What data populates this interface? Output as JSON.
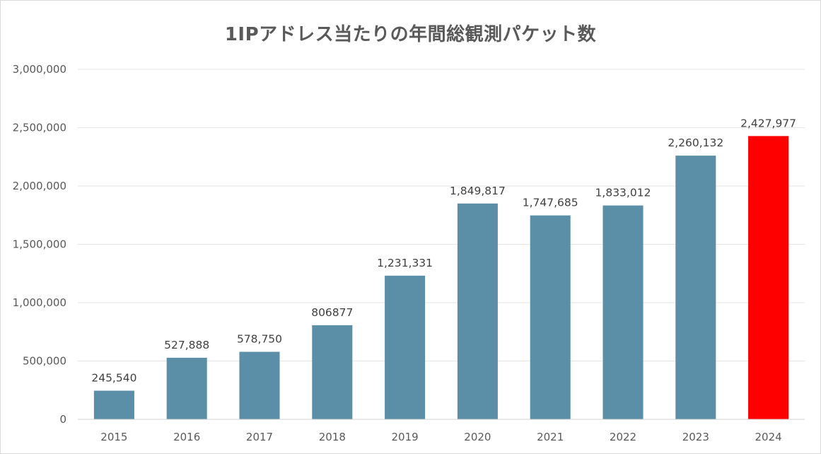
{
  "chart_data": {
    "type": "bar",
    "title": "1IPアドレス当たりの年間総観測パケット数",
    "xlabel": "",
    "ylabel": "",
    "categories": [
      "2015",
      "2016",
      "2017",
      "2018",
      "2019",
      "2020",
      "2021",
      "2022",
      "2023",
      "2024"
    ],
    "values": [
      245540,
      527888,
      578750,
      806877,
      1231331,
      1849817,
      1747685,
      1833012,
      2260132,
      2427977
    ],
    "data_labels": [
      "245,540",
      "527,888",
      "578,750",
      "806877",
      "1,231,331",
      "1,849,817",
      "1,747,685",
      "1,833,012",
      "2,260,132",
      "2,427,977"
    ],
    "ylim": [
      0,
      3000000
    ],
    "y_ticks": [
      0,
      500000,
      1000000,
      1500000,
      2000000,
      2500000,
      3000000
    ],
    "y_tick_labels": [
      "0",
      "500,000",
      "1,000,000",
      "1,500,000",
      "2,000,000",
      "2,500,000",
      "3,000,000"
    ],
    "grid": true,
    "legend": "none",
    "colors": {
      "bar": "#5b8fa8",
      "highlight": "#ff0000",
      "highlight_category": "2024"
    }
  }
}
